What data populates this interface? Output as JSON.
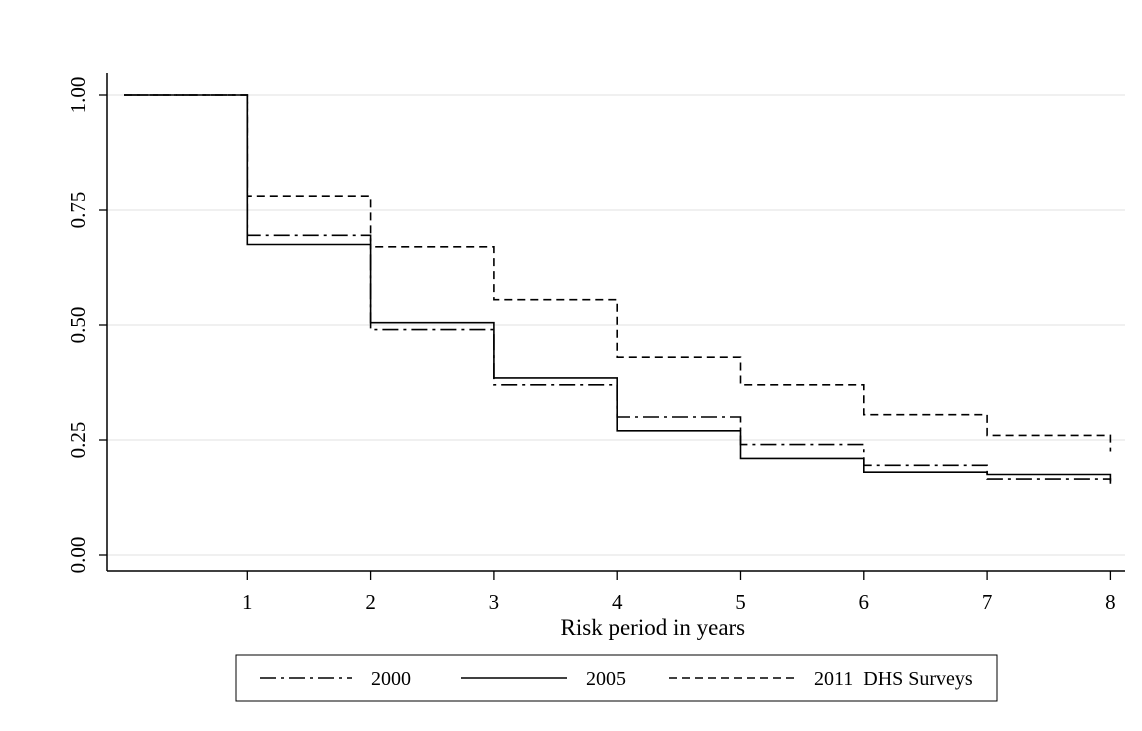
{
  "chart_data": {
    "type": "line",
    "step": true,
    "title": "",
    "xlabel": "Risk period in years",
    "ylabel": "",
    "xlim": [
      0,
      8
    ],
    "ylim": [
      0,
      1
    ],
    "xticks": [
      1,
      2,
      3,
      4,
      5,
      6,
      7,
      8
    ],
    "xtick_labels": [
      "1",
      "2",
      "3",
      "4",
      "5",
      "6",
      "7",
      "8"
    ],
    "yticks": [
      0,
      0.25,
      0.5,
      0.75,
      1
    ],
    "ytick_labels": [
      "0.00",
      "0.25",
      "0.50",
      "0.75",
      "1.00"
    ],
    "grid": "horizontal",
    "legend_position": "bottom",
    "series": [
      {
        "name": "2000",
        "dash": "dash-dot",
        "color": "#000000",
        "x": [
          0,
          1,
          2,
          3,
          4,
          5,
          6,
          7,
          8
        ],
        "y": [
          1.0,
          0.695,
          0.49,
          0.37,
          0.3,
          0.24,
          0.195,
          0.165,
          0.155
        ]
      },
      {
        "name": "2005",
        "dash": "solid",
        "color": "#000000",
        "x": [
          0,
          1,
          2,
          3,
          4,
          5,
          6,
          7,
          8
        ],
        "y": [
          1.0,
          0.675,
          0.505,
          0.385,
          0.27,
          0.21,
          0.18,
          0.175,
          0.16
        ]
      },
      {
        "name": "2011  DHS Surveys",
        "dash": "dashed",
        "color": "#000000",
        "x": [
          0,
          1,
          2,
          3,
          4,
          5,
          6,
          7,
          8
        ],
        "y": [
          1.0,
          0.78,
          0.67,
          0.555,
          0.43,
          0.37,
          0.305,
          0.26,
          0.225
        ]
      }
    ]
  }
}
